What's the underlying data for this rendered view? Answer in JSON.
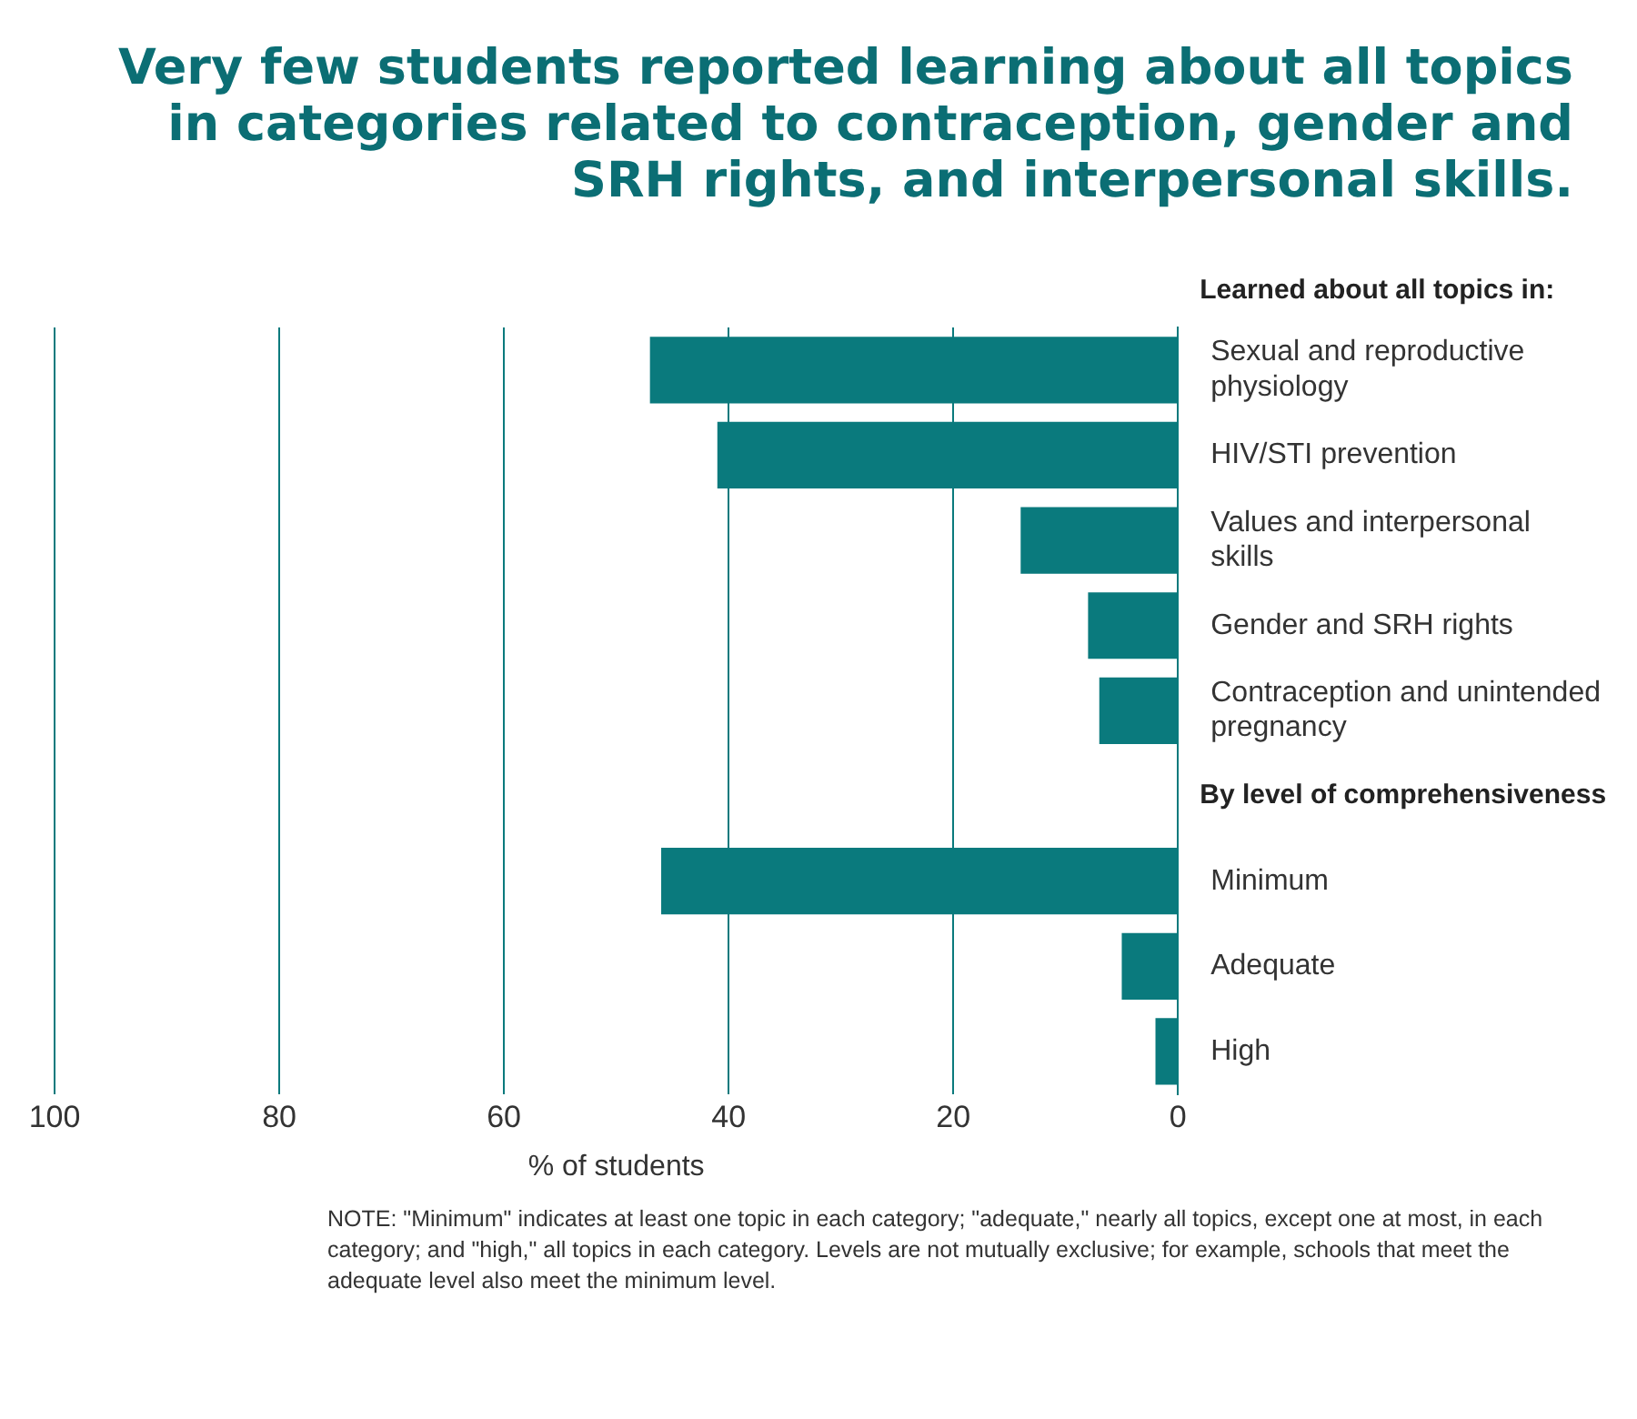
{
  "chart_data": {
    "type": "bar",
    "orientation": "horizontal",
    "title": "Very few students reported learning about all topics in categories related to contraception, gender and SRH rights, and interpersonal skills.",
    "categories": [
      "Sexual and reproductive physiology",
      "HIV/STI prevention",
      "Values and interpersonal skills",
      "Gender and SRH rights",
      "Contraception and unintended pregnancy",
      null,
      "Minimum",
      "Adequate",
      "High"
    ],
    "values": [
      47,
      41,
      14,
      8,
      7,
      null,
      46,
      5,
      2
    ],
    "color": "#0a7a7d",
    "xlim": [
      100,
      0
    ],
    "xticks": [
      100,
      80,
      60,
      40,
      20,
      0
    ],
    "grid": "x",
    "xlabel": "% of students",
    "annotations": [
      "Learned about all topics in:",
      "By level of comprehensiveness",
      "NOTE: \"Minimum\" indicates at least one topic in each category; \"adequate,\" nearly all topics, except one at most, in each category; and \"high,\" all topics in each category. Levels are not mutually exclusive; for example, schools that meet the adequate level also meet the minimum level."
    ]
  }
}
